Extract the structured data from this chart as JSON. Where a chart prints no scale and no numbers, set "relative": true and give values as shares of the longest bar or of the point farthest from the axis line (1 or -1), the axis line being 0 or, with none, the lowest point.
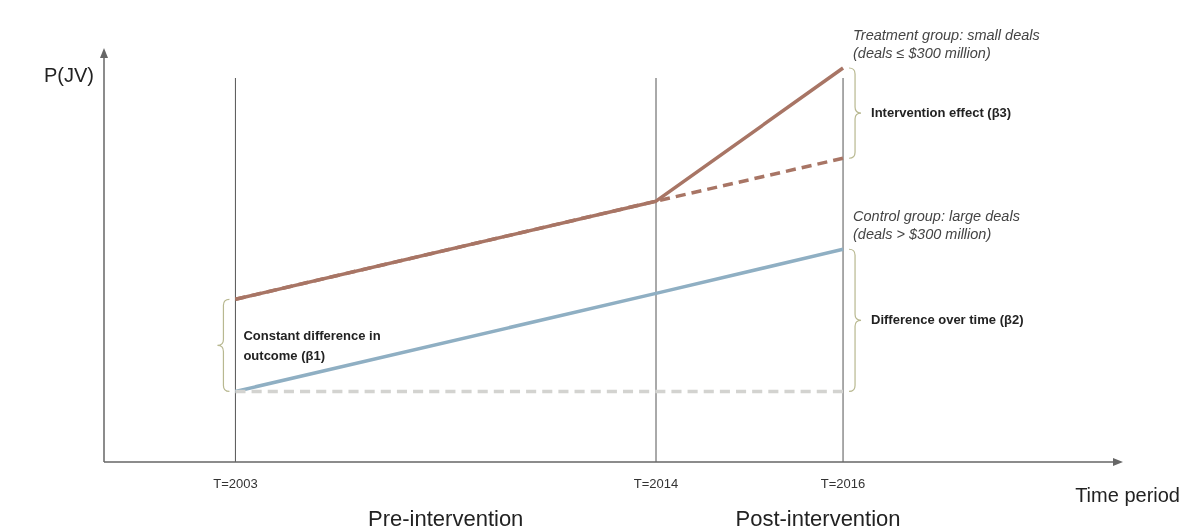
{
  "chart_data": {
    "type": "line",
    "relative": true,
    "xlabel": "Time period",
    "ylabel": "P(JV)",
    "categories": [
      "T=2003",
      "T=2014",
      "T=2016"
    ],
    "grid": "x",
    "series": [
      {
        "name": "Treatment group: small deals (deals ≤ $300 million)",
        "color": "#a87565",
        "values": [
          0.413,
          0.662,
          1
        ],
        "line_style": "solid"
      },
      {
        "color": "#a87565",
        "values": [
          0.413,
          0.662,
          0.771
        ],
        "line_style": "dashed"
      },
      {
        "name": "Control group: large deals (deals > $300 million)",
        "color": "#8fafc3",
        "values": [
          0.179,
          0.428,
          0.54
        ],
        "line_style": "solid"
      },
      {
        "color": "#d3d3d0",
        "values": [
          0.179,
          0.179,
          0.179
        ],
        "line_style": "dashed"
      }
    ],
    "annotations": [
      "Intervention effect (β3)",
      "Difference over time (β2)",
      "Constant difference in outcome (β1)",
      "Pre-intervention",
      "Post-intervention"
    ]
  }
}
